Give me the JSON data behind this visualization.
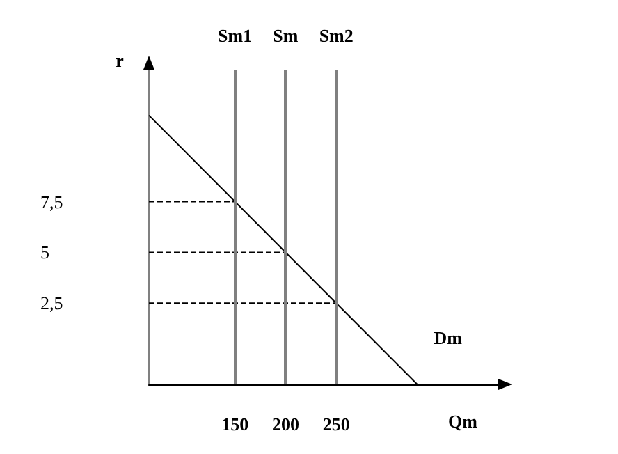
{
  "chart_data": {
    "type": "line",
    "xlabel": "Qm",
    "ylabel": "r",
    "xlim": [
      65,
      410
    ],
    "ylim": [
      -1.5,
      14
    ],
    "xticks": [
      150,
      200,
      250
    ],
    "yticks": [
      {
        "value": 2.5,
        "label": "2,5"
      },
      {
        "value": 5,
        "label": "5"
      },
      {
        "value": 7.5,
        "label": "7,5"
      }
    ],
    "series": [
      {
        "color": "#000000",
        "x": [
          65,
          330
        ],
        "values": [
          11.75,
          -1.5
        ],
        "line_style": "solid"
      },
      {
        "color": "#000000",
        "x": [
          65,
          150
        ],
        "values": [
          7.5,
          7.5
        ],
        "line_style": "dashed"
      },
      {
        "color": "#000000",
        "x": [
          65,
          200
        ],
        "values": [
          5,
          5
        ],
        "line_style": "dashed"
      },
      {
        "color": "#000000",
        "x": [
          65,
          250
        ],
        "values": [
          2.5,
          2.5
        ],
        "line_style": "dashed"
      }
    ],
    "ref_lines": [
      {
        "axis": "x",
        "value": 150,
        "label": "Sm1",
        "color": "#808080"
      },
      {
        "axis": "x",
        "value": 200,
        "label": "Sm",
        "color": "#808080"
      },
      {
        "axis": "x",
        "value": 250,
        "label": "Sm2",
        "color": "#808080"
      }
    ],
    "annotations": [
      "Dm"
    ],
    "marker": "none",
    "grid": false
  }
}
